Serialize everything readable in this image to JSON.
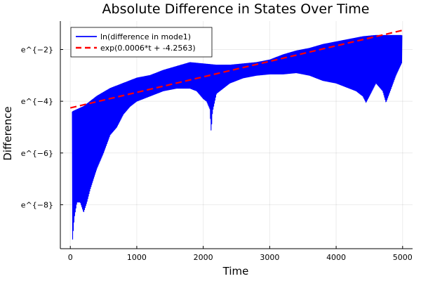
{
  "chart_data": {
    "type": "line",
    "title": "Absolute Difference in States Over Time",
    "xlabel": "Time",
    "ylabel": "Difference",
    "xlim": [
      -150,
      5150
    ],
    "ylim": [
      -9.7,
      -0.9
    ],
    "x_ticks": [
      0,
      1000,
      2000,
      3000,
      4000,
      5000
    ],
    "x_tick_labels": [
      "0",
      "1000",
      "2000",
      "3000",
      "4000",
      "5000"
    ],
    "y_ticks": [
      -2,
      -4,
      -6,
      -8
    ],
    "y_tick_labels": [
      "e^{−2}",
      "e^{−4}",
      "e^{−6}",
      "e^{−8}"
    ],
    "grid": true,
    "legend_position": "top-left",
    "series": [
      {
        "name": "ln(difference in mode1)",
        "color": "#0000ff",
        "style": "oscillating",
        "upper_envelope": {
          "x": [
            30,
            200,
            400,
            600,
            800,
            1000,
            1200,
            1400,
            1600,
            1800,
            2000,
            2200,
            2400,
            2600,
            2800,
            3000,
            3200,
            3400,
            3600,
            3800,
            4000,
            4200,
            4400,
            4600,
            4800,
            4990
          ],
          "y": [
            -4.4,
            -4.2,
            -3.8,
            -3.5,
            -3.3,
            -3.1,
            -3.0,
            -2.8,
            -2.65,
            -2.5,
            -2.55,
            -2.6,
            -2.6,
            -2.55,
            -2.5,
            -2.4,
            -2.2,
            -2.05,
            -1.95,
            -1.8,
            -1.7,
            -1.6,
            -1.5,
            -1.45,
            -1.45,
            -1.45
          ]
        },
        "lower_envelope": {
          "x": [
            30,
            60,
            100,
            150,
            200,
            250,
            300,
            400,
            500,
            600,
            700,
            800,
            900,
            1000,
            1200,
            1400,
            1600,
            1800,
            1900,
            2000,
            2050,
            2100,
            2120,
            2140,
            2200,
            2300,
            2400,
            2500,
            2600,
            2800,
            3000,
            3200,
            3400,
            3600,
            3800,
            4000,
            4200,
            4300,
            4400,
            4450,
            4500,
            4600,
            4700,
            4750,
            4800,
            4900,
            4990
          ],
          "y": [
            -9.5,
            -8.5,
            -7.9,
            -7.9,
            -8.3,
            -7.9,
            -7.4,
            -6.6,
            -6.0,
            -5.3,
            -5.0,
            -4.5,
            -4.2,
            -4.0,
            -3.8,
            -3.6,
            -3.5,
            -3.5,
            -3.6,
            -3.9,
            -4.0,
            -4.3,
            -5.2,
            -4.4,
            -3.7,
            -3.5,
            -3.3,
            -3.2,
            -3.1,
            -3.0,
            -2.95,
            -2.95,
            -2.9,
            -3.0,
            -3.2,
            -3.3,
            -3.5,
            -3.6,
            -3.8,
            -4.05,
            -3.8,
            -3.3,
            -3.6,
            -4.05,
            -3.7,
            -3.0,
            -2.5
          ]
        }
      },
      {
        "name": "exp(0.0006*t + -4.2563)",
        "color": "#ff0000",
        "style": "dashed",
        "x": [
          0,
          5000
        ],
        "y": [
          -4.2563,
          -1.2563
        ]
      }
    ]
  }
}
